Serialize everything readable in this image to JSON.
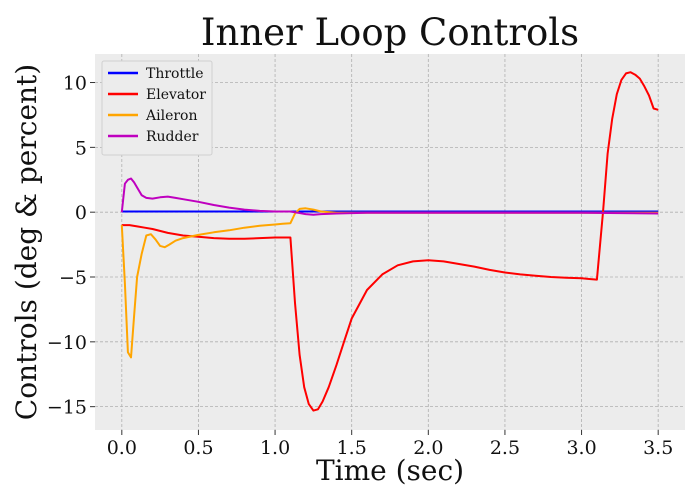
{
  "chart_data": {
    "type": "line",
    "title": "Inner Loop Controls",
    "xlabel": "Time (sec)",
    "ylabel": "Controls (deg & percent)",
    "xlim": [
      -0.175,
      3.675
    ],
    "ylim": [
      -16.8,
      12.2
    ],
    "xticks": [
      0.0,
      0.5,
      1.0,
      1.5,
      2.0,
      2.5,
      3.0,
      3.5
    ],
    "xtick_labels": [
      "0.0",
      "0.5",
      "1.0",
      "1.5",
      "2.0",
      "2.5",
      "3.0",
      "3.5"
    ],
    "yticks": [
      -15,
      -10,
      -5,
      0,
      5,
      10
    ],
    "ytick_labels": [
      "−15",
      "−10",
      "−5",
      "0",
      "5",
      "10"
    ],
    "grid": true,
    "legend_position": "upper-left",
    "series": [
      {
        "name": "Throttle",
        "color": "#0000ff",
        "x": [
          0.0,
          3.5
        ],
        "y": [
          0.05,
          0.05
        ]
      },
      {
        "name": "Elevator",
        "color": "#ff0000",
        "x": [
          0.0,
          0.05,
          0.1,
          0.15,
          0.2,
          0.3,
          0.4,
          0.5,
          0.6,
          0.7,
          0.8,
          0.9,
          1.0,
          1.05,
          1.1,
          1.13,
          1.16,
          1.19,
          1.22,
          1.25,
          1.28,
          1.31,
          1.35,
          1.4,
          1.45,
          1.5,
          1.6,
          1.7,
          1.8,
          1.9,
          2.0,
          2.1,
          2.2,
          2.3,
          2.4,
          2.5,
          2.6,
          2.7,
          2.8,
          2.9,
          3.0,
          3.05,
          3.1,
          3.14,
          3.17,
          3.2,
          3.23,
          3.26,
          3.29,
          3.32,
          3.35,
          3.38,
          3.41,
          3.44,
          3.47,
          3.5
        ],
        "y": [
          -1.0,
          -1.0,
          -1.1,
          -1.2,
          -1.3,
          -1.6,
          -1.8,
          -1.9,
          -2.0,
          -2.05,
          -2.05,
          -2.0,
          -1.95,
          -1.95,
          -1.95,
          -7.0,
          -11.0,
          -13.5,
          -14.8,
          -15.3,
          -15.2,
          -14.6,
          -13.5,
          -11.8,
          -10.0,
          -8.2,
          -6.0,
          -4.8,
          -4.1,
          -3.8,
          -3.7,
          -3.8,
          -4.0,
          -4.2,
          -4.45,
          -4.65,
          -4.8,
          -4.9,
          -5.0,
          -5.05,
          -5.1,
          -5.15,
          -5.2,
          0.0,
          4.5,
          7.2,
          9.1,
          10.2,
          10.7,
          10.8,
          10.6,
          10.3,
          9.7,
          9.0,
          8.0,
          7.9
        ]
      },
      {
        "name": "Aileron",
        "color": "#ffa500",
        "x": [
          0.0,
          0.02,
          0.04,
          0.06,
          0.08,
          0.1,
          0.13,
          0.16,
          0.19,
          0.22,
          0.25,
          0.28,
          0.31,
          0.35,
          0.4,
          0.5,
          0.6,
          0.7,
          0.8,
          0.9,
          1.0,
          1.05,
          1.1,
          1.13,
          1.16,
          1.2,
          1.25,
          1.3,
          1.4,
          1.6,
          2.0,
          2.5,
          3.0,
          3.5
        ],
        "y": [
          -1.0,
          -5.5,
          -10.8,
          -11.2,
          -8.0,
          -5.0,
          -3.2,
          -1.8,
          -1.7,
          -2.1,
          -2.6,
          -2.7,
          -2.5,
          -2.2,
          -2.0,
          -1.75,
          -1.55,
          -1.4,
          -1.2,
          -1.05,
          -0.95,
          -0.9,
          -0.85,
          -0.1,
          0.25,
          0.3,
          0.2,
          0.05,
          -0.05,
          -0.05,
          -0.05,
          -0.05,
          -0.05,
          -0.05
        ]
      },
      {
        "name": "Rudder",
        "color": "#bf00bf",
        "x": [
          0.0,
          0.02,
          0.04,
          0.06,
          0.08,
          0.1,
          0.13,
          0.16,
          0.2,
          0.25,
          0.3,
          0.35,
          0.4,
          0.5,
          0.6,
          0.7,
          0.8,
          0.9,
          1.0,
          1.05,
          1.1,
          1.15,
          1.2,
          1.25,
          1.3,
          1.4,
          1.6,
          2.0,
          2.5,
          3.0,
          3.5
        ],
        "y": [
          0.0,
          2.2,
          2.5,
          2.6,
          2.3,
          1.9,
          1.3,
          1.1,
          1.05,
          1.15,
          1.2,
          1.1,
          1.0,
          0.8,
          0.55,
          0.35,
          0.2,
          0.1,
          0.05,
          0.05,
          0.05,
          -0.05,
          -0.15,
          -0.2,
          -0.15,
          -0.1,
          -0.05,
          -0.05,
          -0.05,
          -0.05,
          -0.1
        ]
      }
    ]
  }
}
